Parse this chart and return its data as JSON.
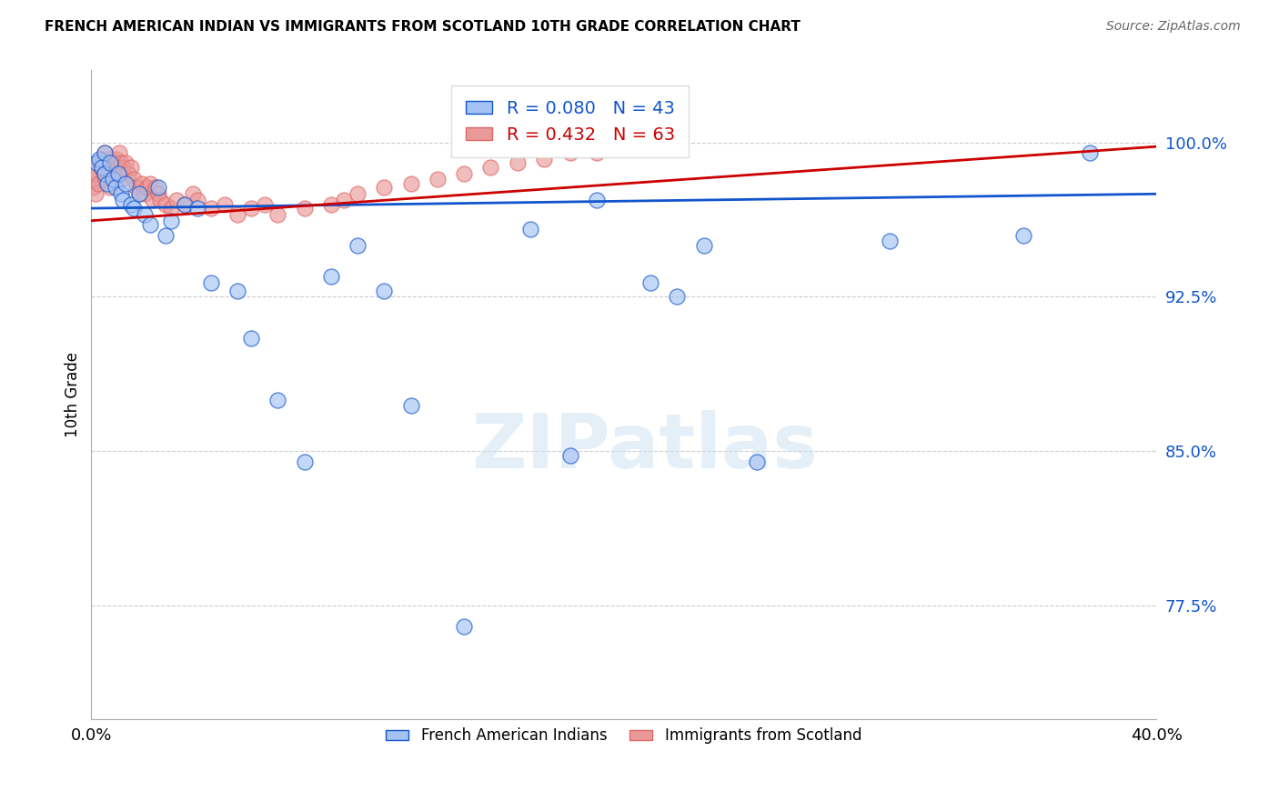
{
  "title": "FRENCH AMERICAN INDIAN VS IMMIGRANTS FROM SCOTLAND 10TH GRADE CORRELATION CHART",
  "source": "Source: ZipAtlas.com",
  "ylabel": "10th Grade",
  "yticks": [
    77.5,
    85.0,
    92.5,
    100.0
  ],
  "ytick_labels": [
    "77.5%",
    "85.0%",
    "92.5%",
    "100.0%"
  ],
  "xmin": 0.0,
  "xmax": 40.0,
  "ymin": 72.0,
  "ymax": 103.5,
  "blue_R": 0.08,
  "blue_N": 43,
  "pink_R": 0.432,
  "pink_N": 63,
  "blue_color": "#a4c2f4",
  "pink_color": "#ea9999",
  "blue_line_color": "#1155cc",
  "pink_line_color": "#cc0000",
  "legend_label_blue": "French American Indians",
  "legend_label_pink": "Immigrants from Scotland",
  "watermark": "ZIPatlas",
  "blue_scatter_x": [
    0.2,
    0.3,
    0.4,
    0.5,
    0.5,
    0.6,
    0.7,
    0.8,
    0.9,
    1.0,
    1.1,
    1.2,
    1.3,
    1.5,
    1.6,
    1.8,
    2.0,
    2.2,
    2.5,
    2.8,
    3.0,
    3.5,
    4.0,
    4.5,
    5.5,
    6.0,
    7.0,
    8.0,
    9.0,
    10.0,
    11.0,
    12.0,
    14.0,
    16.5,
    18.0,
    19.0,
    21.0,
    22.0,
    23.0,
    25.0,
    30.0,
    35.0,
    37.5
  ],
  "blue_scatter_y": [
    99.0,
    99.2,
    98.8,
    99.5,
    98.5,
    98.0,
    99.0,
    98.2,
    97.8,
    98.5,
    97.5,
    97.2,
    98.0,
    97.0,
    96.8,
    97.5,
    96.5,
    96.0,
    97.8,
    95.5,
    96.2,
    97.0,
    96.8,
    93.2,
    92.8,
    90.5,
    87.5,
    84.5,
    93.5,
    95.0,
    92.8,
    87.2,
    76.5,
    95.8,
    84.8,
    97.2,
    93.2,
    92.5,
    95.0,
    84.5,
    95.2,
    95.5,
    99.5
  ],
  "pink_scatter_x": [
    0.05,
    0.1,
    0.15,
    0.2,
    0.25,
    0.3,
    0.35,
    0.4,
    0.45,
    0.5,
    0.55,
    0.6,
    0.65,
    0.7,
    0.75,
    0.8,
    0.85,
    0.9,
    0.95,
    1.0,
    1.05,
    1.1,
    1.15,
    1.2,
    1.3,
    1.4,
    1.5,
    1.6,
    1.7,
    1.8,
    1.9,
    2.0,
    2.1,
    2.2,
    2.3,
    2.4,
    2.5,
    2.6,
    2.8,
    3.0,
    3.2,
    3.5,
    3.8,
    4.0,
    4.5,
    5.0,
    5.5,
    6.0,
    6.5,
    7.0,
    8.0,
    9.0,
    9.5,
    10.0,
    11.0,
    12.0,
    13.0,
    14.0,
    15.0,
    16.0,
    17.0,
    18.0,
    19.0
  ],
  "pink_scatter_y": [
    97.8,
    98.2,
    97.5,
    98.5,
    98.0,
    99.0,
    98.8,
    99.2,
    98.5,
    99.5,
    98.2,
    99.0,
    98.5,
    97.8,
    99.2,
    98.8,
    99.0,
    98.5,
    99.2,
    98.8,
    99.5,
    99.0,
    98.2,
    98.8,
    99.0,
    98.5,
    98.8,
    98.2,
    97.8,
    97.5,
    98.0,
    97.5,
    97.8,
    98.0,
    97.2,
    97.8,
    97.5,
    97.2,
    97.0,
    96.8,
    97.2,
    97.0,
    97.5,
    97.2,
    96.8,
    97.0,
    96.5,
    96.8,
    97.0,
    96.5,
    96.8,
    97.0,
    97.2,
    97.5,
    97.8,
    98.0,
    98.2,
    98.5,
    98.8,
    99.0,
    99.2,
    99.5,
    99.5
  ]
}
